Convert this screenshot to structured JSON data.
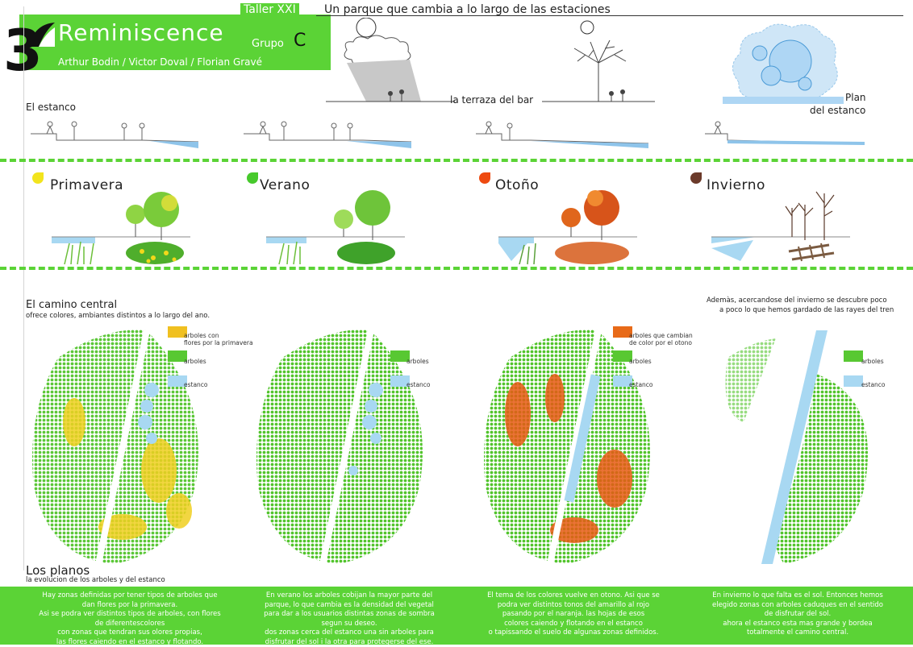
{
  "header": {
    "number": "3",
    "title": "Reminiscence",
    "grupo_label": "Grupo",
    "grupo_letter": "C",
    "authors": "Arthur Bodin / Victor Doval / Florian Gravé",
    "taller": "Taller XXI",
    "subtitle": "Un parque que cambia a lo largo de las estaciones"
  },
  "top": {
    "terraza_label": "la terraza del bar",
    "plan_label_1": "Plan",
    "plan_label_2": "del estanco",
    "estanco_label": "El estanco"
  },
  "seasons": [
    {
      "name": "Primavera",
      "color": "#f2e41d"
    },
    {
      "name": "Verano",
      "color": "#47c92c"
    },
    {
      "name": "Otoño",
      "color": "#ee4a10"
    },
    {
      "name": "Invierno",
      "color": "#6b3a2a"
    }
  ],
  "camino": {
    "title": "El camino central",
    "subtitle": "ofrece colores, ambiantes distintos a lo largo del ano.",
    "invierno_note_1": "Ademàs, acercandose del invierno se descubre poco",
    "invierno_note_2": "a poco lo que hemos gardado de las rayes del tren"
  },
  "legends": [
    {
      "swatch1": "#f0c020",
      "label1_a": "arboles con",
      "label1_b": "flores por la primavera",
      "label2": "arboles",
      "label3": "estanco"
    },
    {
      "label2": "arboles",
      "label3": "estanco"
    },
    {
      "swatch1": "#e86a18",
      "label1_a": "arboles que cambian",
      "label1_b": "de color por el otono",
      "label2": "arboles",
      "label3": "estanco"
    },
    {
      "label2": "arboles",
      "label3": "estanco"
    }
  ],
  "planos": {
    "title": "Los planos",
    "subtitle": "la evolucion de los arboles y del estanco"
  },
  "bottom": [
    {
      "lines": [
        "Hay zonas definidas  por tener tipos de arboles que",
        "dan flores por la primavera.",
        "Asi se podra ver distintos tipos de arboles, con flores",
        "de diferentescolores",
        "con zonas que tendran sus olores propias,",
        "las flores caiendo en el estanco  y flotando."
      ]
    },
    {
      "lines": [
        "En verano los arboles cobijan la mayor parte del",
        "parque, lo que cambia es la densidad del vegetal",
        "para dar a los usuarios distintas zonas de sombra",
        "segun su deseo.",
        "dos zonas cerca del estanco una sin arboles para",
        "disfrutar del sol i la otra para protegerse del  ese."
      ]
    },
    {
      "lines": [
        "El tema de los colores vuelve en otono. Asi que se",
        "podra ver distintos tonos del amarillo al rojo",
        "pasando por el naranja. las hojas de esos",
        "colores caiendo y flotando en el estanco",
        "o tapissando el suelo de algunas zonas definidos."
      ]
    },
    {
      "lines": [
        "En invierno lo que falta es el sol. Entonces hemos",
        "elegido zonas con arboles caduques en el sentido",
        "de disfrutar del sol.",
        "ahora el estanco  esta mas grande y bordea",
        "totalmente el camino central."
      ]
    }
  ],
  "colors": {
    "accent": "#5bd336",
    "water": "#a8d8f2",
    "leaf": "#58c832"
  }
}
